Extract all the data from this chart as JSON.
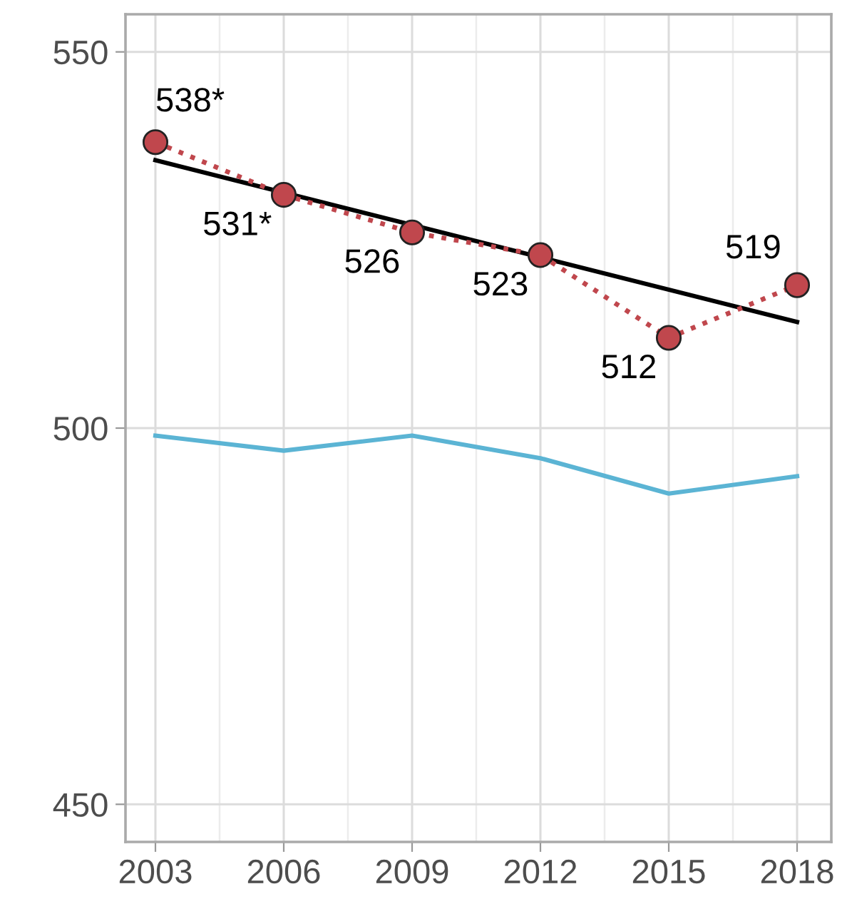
{
  "chart_data": {
    "type": "line",
    "x": [
      2003,
      2006,
      2009,
      2012,
      2015,
      2018
    ],
    "xlim": [
      2002.3,
      2018.8
    ],
    "xticks": [
      2003,
      2006,
      2009,
      2012,
      2015,
      2018
    ],
    "ylim": [
      445,
      555
    ],
    "yticks": [
      450,
      500,
      550
    ],
    "grid": true,
    "series": [
      {
        "color": "#5bb4d4",
        "values": [
          499,
          497,
          499,
          496,
          491.3,
          493.6
        ],
        "line_style": "solid",
        "marker": "none"
      },
      {
        "type": "line",
        "color": "#000000",
        "x": [
          2003,
          2018
        ],
        "values": [
          535.6,
          514.1
        ],
        "line_style": "solid",
        "marker": "none"
      },
      {
        "color": "#c0474d",
        "values": [
          538,
          531,
          526,
          523,
          512,
          519
        ],
        "line_style": "dotted",
        "marker": "circle",
        "value_labels": [
          "538*",
          "531*",
          "526",
          "523",
          "512",
          "519"
        ]
      }
    ]
  }
}
